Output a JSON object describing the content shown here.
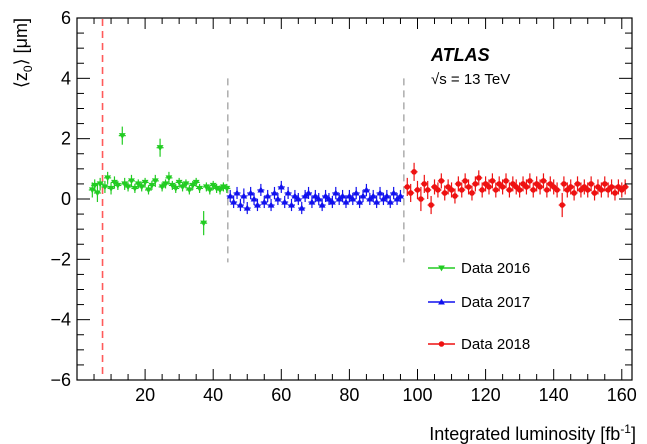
{
  "chart_data": {
    "type": "scatter",
    "xlabel": "Integrated luminosity [fb",
    "xlabel_sup": "-1",
    "xlabel_end": "]",
    "ylabel": "⟨z",
    "ylabel_sub": "0",
    "ylabel_end": "⟩ [μm]",
    "xlim": [
      0,
      163
    ],
    "ylim": [
      -6,
      6
    ],
    "x_ticks": [
      20,
      40,
      60,
      80,
      100,
      120,
      140,
      160
    ],
    "y_ticks": [
      -6,
      -4,
      -2,
      0,
      2,
      4,
      6
    ],
    "x_tick_labels": [
      "20",
      "40",
      "60",
      "80",
      "100",
      "120",
      "140",
      "160"
    ],
    "y_tick_labels": [
      "−6",
      "−4",
      "−2",
      "0",
      "2",
      "4",
      "6"
    ],
    "annotations": {
      "experiment": "ATLAS",
      "energy_sqrt": "√s",
      "energy_rest": " = 13 TeV"
    },
    "vertical_lines": [
      {
        "x": 7.5,
        "color": "#ff5a5a",
        "dashed": true,
        "full": true
      },
      {
        "x": 44.3,
        "color": "#999999",
        "dashed": true,
        "full": false
      },
      {
        "x": 96.0,
        "color": "#999999",
        "dashed": true,
        "full": false
      }
    ],
    "legend_position": "lower-right",
    "series": [
      {
        "name": "Data 2016",
        "color": "#22cc22",
        "marker": "triangle-down",
        "points": [
          {
            "x": 4.5,
            "y": 0.3,
            "err": 0.25
          },
          {
            "x": 5.2,
            "y": 0.45,
            "err": 0.2
          },
          {
            "x": 6.0,
            "y": 0.2,
            "err": 0.3
          },
          {
            "x": 6.8,
            "y": 0.5,
            "err": 0.2
          },
          {
            "x": 8.2,
            "y": 0.4,
            "err": 0.2
          },
          {
            "x": 9.0,
            "y": 0.7,
            "err": 0.2
          },
          {
            "x": 10.0,
            "y": 0.35,
            "err": 0.2
          },
          {
            "x": 11.0,
            "y": 0.55,
            "err": 0.2
          },
          {
            "x": 12.0,
            "y": 0.45,
            "err": 0.15
          },
          {
            "x": 13.3,
            "y": 2.1,
            "err": 0.3
          },
          {
            "x": 14.0,
            "y": 0.5,
            "err": 0.2
          },
          {
            "x": 15.0,
            "y": 0.4,
            "err": 0.15
          },
          {
            "x": 16.0,
            "y": 0.6,
            "err": 0.2
          },
          {
            "x": 17.0,
            "y": 0.35,
            "err": 0.15
          },
          {
            "x": 18.0,
            "y": 0.5,
            "err": 0.15
          },
          {
            "x": 19.0,
            "y": 0.4,
            "err": 0.15
          },
          {
            "x": 20.0,
            "y": 0.55,
            "err": 0.15
          },
          {
            "x": 21.0,
            "y": 0.3,
            "err": 0.15
          },
          {
            "x": 22.0,
            "y": 0.45,
            "err": 0.15
          },
          {
            "x": 23.0,
            "y": 0.6,
            "err": 0.2
          },
          {
            "x": 24.4,
            "y": 1.7,
            "err": 0.3
          },
          {
            "x": 25.0,
            "y": 0.4,
            "err": 0.15
          },
          {
            "x": 26.0,
            "y": 0.5,
            "err": 0.15
          },
          {
            "x": 27.0,
            "y": 0.7,
            "err": 0.2
          },
          {
            "x": 28.0,
            "y": 0.45,
            "err": 0.15
          },
          {
            "x": 29.0,
            "y": 0.35,
            "err": 0.15
          },
          {
            "x": 30.0,
            "y": 0.55,
            "err": 0.15
          },
          {
            "x": 31.0,
            "y": 0.4,
            "err": 0.15
          },
          {
            "x": 32.0,
            "y": 0.5,
            "err": 0.15
          },
          {
            "x": 33.0,
            "y": 0.3,
            "err": 0.15
          },
          {
            "x": 34.0,
            "y": 0.45,
            "err": 0.15
          },
          {
            "x": 35.0,
            "y": 0.55,
            "err": 0.15
          },
          {
            "x": 36.0,
            "y": 0.35,
            "err": 0.15
          },
          {
            "x": 37.2,
            "y": -0.8,
            "err": 0.4
          },
          {
            "x": 38.0,
            "y": 0.4,
            "err": 0.15
          },
          {
            "x": 39.0,
            "y": 0.3,
            "err": 0.15
          },
          {
            "x": 40.0,
            "y": 0.45,
            "err": 0.15
          },
          {
            "x": 41.0,
            "y": 0.35,
            "err": 0.15
          },
          {
            "x": 42.0,
            "y": 0.3,
            "err": 0.15
          },
          {
            "x": 43.0,
            "y": 0.4,
            "err": 0.15
          },
          {
            "x": 44.0,
            "y": 0.35,
            "err": 0.15
          }
        ]
      },
      {
        "name": "Data 2017",
        "color": "#1111ee",
        "marker": "triangle-up",
        "points": [
          {
            "x": 45.0,
            "y": 0.1,
            "err": 0.2
          },
          {
            "x": 46.0,
            "y": -0.1,
            "err": 0.2
          },
          {
            "x": 47.0,
            "y": 0.2,
            "err": 0.2
          },
          {
            "x": 48.0,
            "y": -0.2,
            "err": 0.2
          },
          {
            "x": 49.0,
            "y": 0.1,
            "err": 0.25
          },
          {
            "x": 50.0,
            "y": -0.3,
            "err": 0.2
          },
          {
            "x": 51.0,
            "y": 0.2,
            "err": 0.2
          },
          {
            "x": 52.0,
            "y": 0.0,
            "err": 0.2
          },
          {
            "x": 53.0,
            "y": -0.2,
            "err": 0.2
          },
          {
            "x": 54.0,
            "y": 0.3,
            "err": 0.2
          },
          {
            "x": 55.0,
            "y": -0.1,
            "err": 0.2
          },
          {
            "x": 56.0,
            "y": 0.1,
            "err": 0.2
          },
          {
            "x": 57.0,
            "y": -0.2,
            "err": 0.2
          },
          {
            "x": 58.0,
            "y": 0.2,
            "err": 0.2
          },
          {
            "x": 59.0,
            "y": 0.0,
            "err": 0.2
          },
          {
            "x": 60.0,
            "y": 0.4,
            "err": 0.2
          },
          {
            "x": 61.0,
            "y": -0.1,
            "err": 0.2
          },
          {
            "x": 62.0,
            "y": 0.2,
            "err": 0.2
          },
          {
            "x": 63.0,
            "y": -0.2,
            "err": 0.2
          },
          {
            "x": 64.0,
            "y": 0.1,
            "err": 0.2
          },
          {
            "x": 65.0,
            "y": 0.0,
            "err": 0.2
          },
          {
            "x": 66.0,
            "y": -0.3,
            "err": 0.2
          },
          {
            "x": 67.0,
            "y": 0.1,
            "err": 0.2
          },
          {
            "x": 68.0,
            "y": 0.2,
            "err": 0.2
          },
          {
            "x": 69.0,
            "y": -0.1,
            "err": 0.2
          },
          {
            "x": 70.0,
            "y": 0.1,
            "err": 0.2
          },
          {
            "x": 71.0,
            "y": 0.0,
            "err": 0.2
          },
          {
            "x": 72.0,
            "y": -0.2,
            "err": 0.2
          },
          {
            "x": 73.0,
            "y": 0.1,
            "err": 0.2
          },
          {
            "x": 74.0,
            "y": 0.0,
            "err": 0.2
          },
          {
            "x": 75.0,
            "y": -0.1,
            "err": 0.2
          },
          {
            "x": 76.0,
            "y": 0.2,
            "err": 0.2
          },
          {
            "x": 77.0,
            "y": 0.0,
            "err": 0.2
          },
          {
            "x": 78.0,
            "y": 0.1,
            "err": 0.2
          },
          {
            "x": 79.0,
            "y": -0.1,
            "err": 0.2
          },
          {
            "x": 80.0,
            "y": 0.1,
            "err": 0.2
          },
          {
            "x": 81.0,
            "y": 0.0,
            "err": 0.2
          },
          {
            "x": 82.0,
            "y": 0.2,
            "err": 0.2
          },
          {
            "x": 83.0,
            "y": -0.1,
            "err": 0.2
          },
          {
            "x": 84.0,
            "y": 0.1,
            "err": 0.2
          },
          {
            "x": 85.0,
            "y": 0.3,
            "err": 0.2
          },
          {
            "x": 86.0,
            "y": 0.0,
            "err": 0.2
          },
          {
            "x": 87.0,
            "y": 0.1,
            "err": 0.2
          },
          {
            "x": 88.0,
            "y": -0.1,
            "err": 0.2
          },
          {
            "x": 89.0,
            "y": 0.2,
            "err": 0.2
          },
          {
            "x": 90.0,
            "y": 0.0,
            "err": 0.2
          },
          {
            "x": 91.0,
            "y": 0.1,
            "err": 0.2
          },
          {
            "x": 92.0,
            "y": -0.1,
            "err": 0.2
          },
          {
            "x": 93.0,
            "y": 0.2,
            "err": 0.2
          },
          {
            "x": 94.0,
            "y": 0.0,
            "err": 0.2
          },
          {
            "x": 95.0,
            "y": 0.1,
            "err": 0.2
          }
        ]
      },
      {
        "name": "Data 2018",
        "color": "#ee1111",
        "marker": "circle",
        "points": [
          {
            "x": 97.0,
            "y": 0.4,
            "err": 0.3
          },
          {
            "x": 98.0,
            "y": 0.2,
            "err": 0.3
          },
          {
            "x": 99.0,
            "y": 0.9,
            "err": 0.3
          },
          {
            "x": 100.0,
            "y": 0.3,
            "err": 0.3
          },
          {
            "x": 101.0,
            "y": 0.0,
            "err": 0.4
          },
          {
            "x": 102.0,
            "y": 0.5,
            "err": 0.3
          },
          {
            "x": 103.0,
            "y": 0.3,
            "err": 0.3
          },
          {
            "x": 104.0,
            "y": -0.2,
            "err": 0.3
          },
          {
            "x": 105.0,
            "y": 0.4,
            "err": 0.25
          },
          {
            "x": 106.0,
            "y": 0.3,
            "err": 0.25
          },
          {
            "x": 107.0,
            "y": 0.6,
            "err": 0.25
          },
          {
            "x": 108.0,
            "y": 0.2,
            "err": 0.25
          },
          {
            "x": 109.0,
            "y": 0.4,
            "err": 0.25
          },
          {
            "x": 110.0,
            "y": 0.3,
            "err": 0.25
          },
          {
            "x": 111.0,
            "y": 0.1,
            "err": 0.25
          },
          {
            "x": 112.0,
            "y": 0.5,
            "err": 0.25
          },
          {
            "x": 113.0,
            "y": 0.3,
            "err": 0.25
          },
          {
            "x": 114.0,
            "y": 0.6,
            "err": 0.25
          },
          {
            "x": 115.0,
            "y": 0.4,
            "err": 0.25
          },
          {
            "x": 116.0,
            "y": 0.2,
            "err": 0.25
          },
          {
            "x": 117.0,
            "y": 0.5,
            "err": 0.25
          },
          {
            "x": 118.0,
            "y": 0.7,
            "err": 0.25
          },
          {
            "x": 119.0,
            "y": 0.3,
            "err": 0.25
          },
          {
            "x": 120.0,
            "y": 0.5,
            "err": 0.25
          },
          {
            "x": 121.0,
            "y": 0.4,
            "err": 0.25
          },
          {
            "x": 122.0,
            "y": 0.6,
            "err": 0.25
          },
          {
            "x": 123.0,
            "y": 0.3,
            "err": 0.25
          },
          {
            "x": 124.0,
            "y": 0.5,
            "err": 0.25
          },
          {
            "x": 125.0,
            "y": 0.4,
            "err": 0.25
          },
          {
            "x": 126.0,
            "y": 0.6,
            "err": 0.25
          },
          {
            "x": 127.0,
            "y": 0.3,
            "err": 0.25
          },
          {
            "x": 128.0,
            "y": 0.5,
            "err": 0.25
          },
          {
            "x": 129.0,
            "y": 0.4,
            "err": 0.25
          },
          {
            "x": 130.0,
            "y": 0.3,
            "err": 0.25
          },
          {
            "x": 131.0,
            "y": 0.5,
            "err": 0.25
          },
          {
            "x": 132.0,
            "y": 0.4,
            "err": 0.25
          },
          {
            "x": 133.0,
            "y": 0.6,
            "err": 0.25
          },
          {
            "x": 134.0,
            "y": 0.3,
            "err": 0.25
          },
          {
            "x": 135.0,
            "y": 0.5,
            "err": 0.25
          },
          {
            "x": 136.0,
            "y": 0.4,
            "err": 0.25
          },
          {
            "x": 137.0,
            "y": 0.6,
            "err": 0.25
          },
          {
            "x": 138.0,
            "y": 0.3,
            "err": 0.25
          },
          {
            "x": 139.0,
            "y": 0.5,
            "err": 0.25
          },
          {
            "x": 140.0,
            "y": 0.4,
            "err": 0.25
          },
          {
            "x": 141.0,
            "y": 0.3,
            "err": 0.25
          },
          {
            "x": 142.5,
            "y": -0.2,
            "err": 0.4
          },
          {
            "x": 143.0,
            "y": 0.5,
            "err": 0.25
          },
          {
            "x": 144.0,
            "y": 0.3,
            "err": 0.25
          },
          {
            "x": 145.0,
            "y": 0.4,
            "err": 0.25
          },
          {
            "x": 146.0,
            "y": 0.2,
            "err": 0.25
          },
          {
            "x": 147.0,
            "y": 0.5,
            "err": 0.25
          },
          {
            "x": 148.0,
            "y": 0.3,
            "err": 0.25
          },
          {
            "x": 149.0,
            "y": 0.4,
            "err": 0.25
          },
          {
            "x": 150.0,
            "y": 0.3,
            "err": 0.25
          },
          {
            "x": 151.0,
            "y": 0.5,
            "err": 0.25
          },
          {
            "x": 152.0,
            "y": 0.2,
            "err": 0.25
          },
          {
            "x": 153.0,
            "y": 0.4,
            "err": 0.25
          },
          {
            "x": 154.0,
            "y": 0.3,
            "err": 0.25
          },
          {
            "x": 155.0,
            "y": 0.5,
            "err": 0.25
          },
          {
            "x": 156.0,
            "y": 0.3,
            "err": 0.25
          },
          {
            "x": 157.0,
            "y": 0.4,
            "err": 0.25
          },
          {
            "x": 158.0,
            "y": 0.2,
            "err": 0.25
          },
          {
            "x": 159.0,
            "y": 0.4,
            "err": 0.25
          },
          {
            "x": 160.0,
            "y": 0.3,
            "err": 0.25
          },
          {
            "x": 161.0,
            "y": 0.4,
            "err": 0.25
          }
        ]
      }
    ]
  }
}
